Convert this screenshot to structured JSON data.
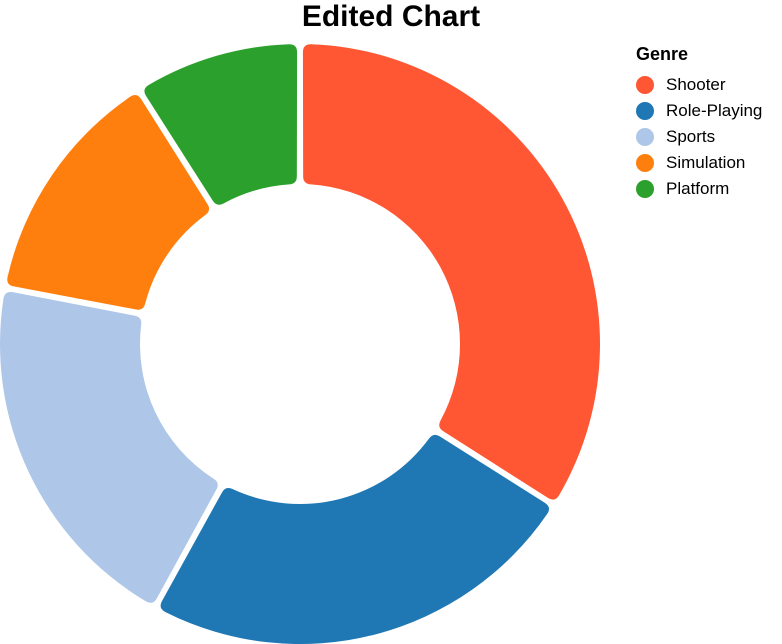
{
  "chart_data": {
    "type": "pie",
    "title": "Edited Chart",
    "legend_title": "Genre",
    "legend_position": "top-right",
    "donut": true,
    "categories": [
      "Shooter",
      "Role-Playing",
      "Sports",
      "Simulation",
      "Platform"
    ],
    "values": [
      34,
      24,
      20,
      13,
      9
    ],
    "colors": [
      "#ff5733",
      "#1f77b4",
      "#aec7e8",
      "#ff7f0e",
      "#2ca02c"
    ]
  }
}
